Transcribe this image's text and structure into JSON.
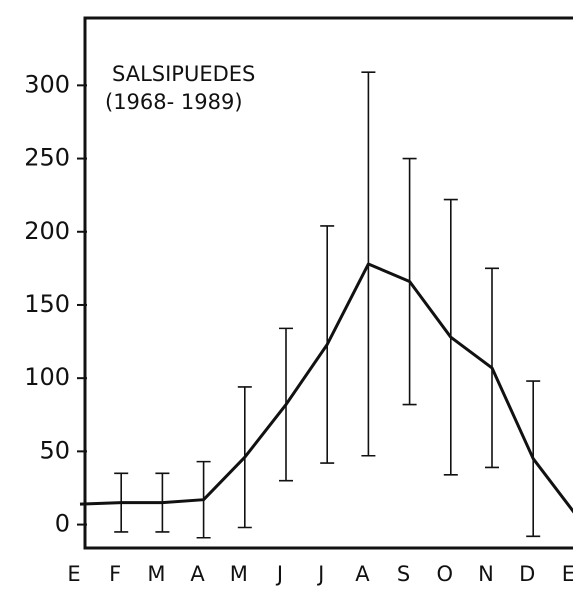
{
  "chart_data": {
    "type": "line",
    "title": "SALSIPUEDES",
    "subtitle": "(1968- 1989)",
    "categories": [
      "E",
      "F",
      "M",
      "A",
      "M",
      "J",
      "J",
      "A",
      "S",
      "O",
      "N",
      "D",
      "E"
    ],
    "values": [
      14,
      15,
      15,
      17,
      46,
      82,
      123,
      178,
      166,
      128,
      107,
      45,
      8
    ],
    "errors": [
      null,
      20,
      20,
      26,
      48,
      52,
      81,
      131,
      84,
      94,
      68,
      53,
      null
    ],
    "color": "#111111",
    "ylim": [
      -16,
      346
    ],
    "yticks": [
      0,
      50,
      100,
      150,
      200,
      250,
      300
    ]
  }
}
